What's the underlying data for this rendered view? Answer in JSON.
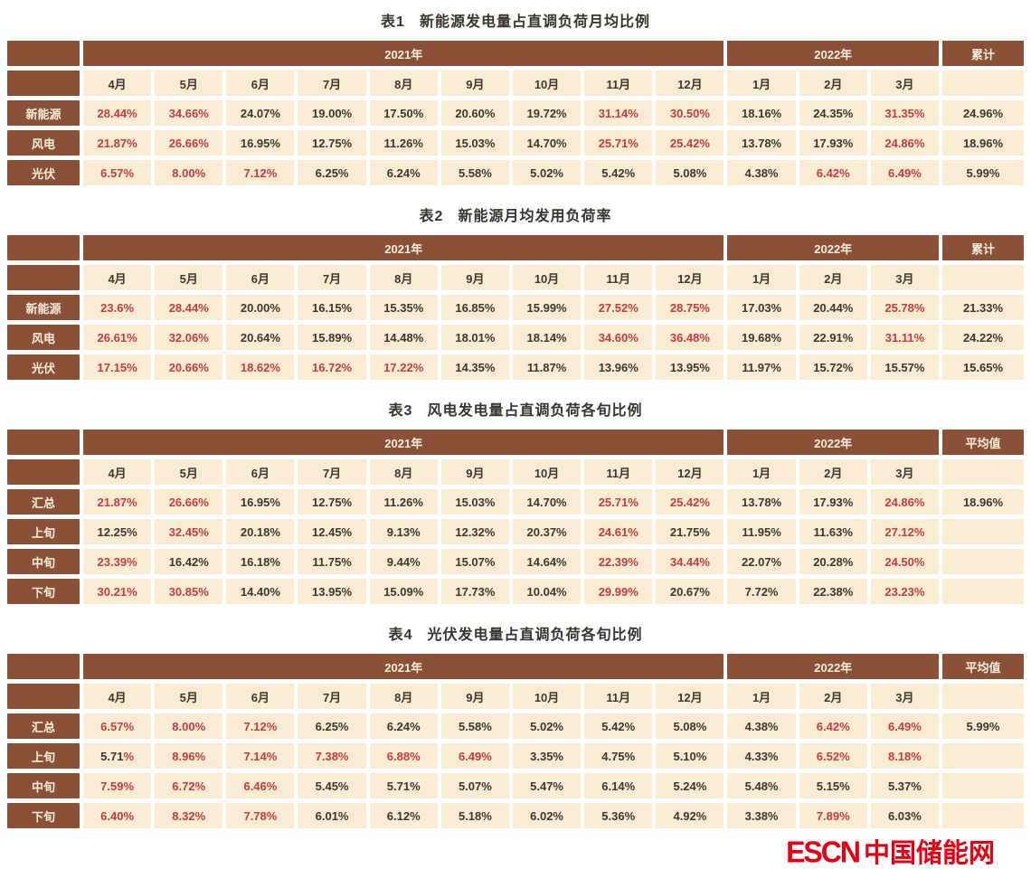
{
  "colors": {
    "header_brown": "#8a5136",
    "cell_cream": "#faecd2",
    "value_red": "#c93a42",
    "value_dark": "#3c3831",
    "header_text": "#f8eedd",
    "logo_red": "#e60012"
  },
  "footer": {
    "logo_escn": "ESCN",
    "logo_cn": "中国储能网"
  },
  "chart_data": {
    "type": "table",
    "months": [
      "4月",
      "5月",
      "6月",
      "7月",
      "8月",
      "9月",
      "10月",
      "11月",
      "12月",
      "1月",
      "2月",
      "3月"
    ],
    "year_groups": [
      {
        "label": "2021年",
        "span": 9
      },
      {
        "label": "2022年",
        "span": 3
      }
    ],
    "tables": [
      {
        "tag": "表1",
        "title": "新能源发电量占直调负荷月均比例",
        "last_col": "累计",
        "rows": [
          {
            "label": "新能源",
            "summary": "24.96%",
            "cells": [
              {
                "v": "28.44%",
                "c": "r"
              },
              {
                "v": "34.66%",
                "c": "r"
              },
              {
                "v": "24.07%",
                "c": "k"
              },
              {
                "v": "19.00%",
                "c": "k"
              },
              {
                "v": "17.50%",
                "c": "k"
              },
              {
                "v": "20.60%",
                "c": "k"
              },
              {
                "v": "19.72%",
                "c": "k"
              },
              {
                "v": "31.14%",
                "c": "r"
              },
              {
                "v": "30.50%",
                "c": "r"
              },
              {
                "v": "18.16%",
                "c": "k"
              },
              {
                "v": "24.35%",
                "c": "k"
              },
              {
                "v": "31.35%",
                "c": "r"
              }
            ]
          },
          {
            "label": "风电",
            "summary": "18.96%",
            "cells": [
              {
                "v": "21.87%",
                "c": "r"
              },
              {
                "v": "26.66%",
                "c": "r"
              },
              {
                "v": "16.95%",
                "c": "k"
              },
              {
                "v": "12.75%",
                "c": "k"
              },
              {
                "v": "11.26%",
                "c": "k"
              },
              {
                "v": "15.03%",
                "c": "k"
              },
              {
                "v": "14.70%",
                "c": "k"
              },
              {
                "v": "25.71%",
                "c": "r"
              },
              {
                "v": "25.42%",
                "c": "r"
              },
              {
                "v": "13.78%",
                "c": "k"
              },
              {
                "v": "17.93%",
                "c": "k"
              },
              {
                "v": "24.86%",
                "c": "r"
              }
            ]
          },
          {
            "label": "光伏",
            "summary": "5.99%",
            "cells": [
              {
                "v": "6.57%",
                "c": "r"
              },
              {
                "v": "8.00%",
                "c": "r"
              },
              {
                "v": "7.12%",
                "c": "r"
              },
              {
                "v": "6.25%",
                "c": "k"
              },
              {
                "v": "6.24%",
                "c": "k"
              },
              {
                "v": "5.58%",
                "c": "k"
              },
              {
                "v": "5.02%",
                "c": "k"
              },
              {
                "v": "5.42%",
                "c": "k"
              },
              {
                "v": "5.08%",
                "c": "k"
              },
              {
                "v": "4.38%",
                "c": "k"
              },
              {
                "v": "6.42%",
                "c": "r"
              },
              {
                "v": "6.49%",
                "c": "r"
              }
            ]
          }
        ]
      },
      {
        "tag": "表2",
        "title": "新能源月均发用负荷率",
        "last_col": "累计",
        "rows": [
          {
            "label": "新能源",
            "summary": "21.33%",
            "cells": [
              {
                "v": "23.6%",
                "c": "r"
              },
              {
                "v": "28.44%",
                "c": "r"
              },
              {
                "v": "20.00%",
                "c": "k"
              },
              {
                "v": "16.15%",
                "c": "k"
              },
              {
                "v": "15.35%",
                "c": "k"
              },
              {
                "v": "16.85%",
                "c": "k"
              },
              {
                "v": "15.99%",
                "c": "k"
              },
              {
                "v": "27.52%",
                "c": "r"
              },
              {
                "v": "28.75%",
                "c": "r"
              },
              {
                "v": "17.03%",
                "c": "k"
              },
              {
                "v": "20.44%",
                "c": "k"
              },
              {
                "v": "25.78%",
                "c": "r"
              }
            ]
          },
          {
            "label": "风电",
            "summary": "24.22%",
            "cells": [
              {
                "v": "26.61%",
                "c": "r"
              },
              {
                "v": "32.06%",
                "c": "r"
              },
              {
                "v": "20.64%",
                "c": "k"
              },
              {
                "v": "15.89%",
                "c": "k"
              },
              {
                "v": "14.48%",
                "c": "k"
              },
              {
                "v": "18.01%",
                "c": "k"
              },
              {
                "v": "18.14%",
                "c": "k"
              },
              {
                "v": "34.60%",
                "c": "r"
              },
              {
                "v": "36.48%",
                "c": "r"
              },
              {
                "v": "19.68%",
                "c": "k"
              },
              {
                "v": "22.91%",
                "c": "k"
              },
              {
                "v": "31.11%",
                "c": "r"
              }
            ]
          },
          {
            "label": "光伏",
            "summary": "15.65%",
            "cells": [
              {
                "v": "17.15%",
                "c": "r"
              },
              {
                "v": "20.66%",
                "c": "r"
              },
              {
                "v": "18.62%",
                "c": "r"
              },
              {
                "v": "16.72%",
                "c": "r"
              },
              {
                "v": "17.22%",
                "c": "r"
              },
              {
                "v": "14.35%",
                "c": "k"
              },
              {
                "v": "11.87%",
                "c": "k"
              },
              {
                "v": "13.96%",
                "c": "k"
              },
              {
                "v": "13.95%",
                "c": "k"
              },
              {
                "v": "11.97%",
                "c": "k"
              },
              {
                "v": "15.72%",
                "c": "k"
              },
              {
                "v": "15.57%",
                "c": "k"
              }
            ]
          }
        ]
      },
      {
        "tag": "表3",
        "title": "风电发电量占直调负荷各旬比例",
        "last_col": "平均值",
        "rows": [
          {
            "label": "汇总",
            "summary": "18.96%",
            "cells": [
              {
                "v": "21.87%",
                "c": "r"
              },
              {
                "v": "26.66%",
                "c": "r"
              },
              {
                "v": "16.95%",
                "c": "k"
              },
              {
                "v": "12.75%",
                "c": "k"
              },
              {
                "v": "11.26%",
                "c": "k"
              },
              {
                "v": "15.03%",
                "c": "k"
              },
              {
                "v": "14.70%",
                "c": "k"
              },
              {
                "v": "25.71%",
                "c": "r"
              },
              {
                "v": "25.42%",
                "c": "r"
              },
              {
                "v": "13.78%",
                "c": "k"
              },
              {
                "v": "17.93%",
                "c": "k"
              },
              {
                "v": "24.86%",
                "c": "r"
              }
            ]
          },
          {
            "label": "上旬",
            "summary": "",
            "cells": [
              {
                "v": "12.25%",
                "c": "k"
              },
              {
                "v": "32.45%",
                "c": "r"
              },
              {
                "v": "20.18%",
                "c": "k"
              },
              {
                "v": "12.45%",
                "c": "k"
              },
              {
                "v": "9.13%",
                "c": "k"
              },
              {
                "v": "12.32%",
                "c": "k"
              },
              {
                "v": "20.37%",
                "c": "k"
              },
              {
                "v": "24.61%",
                "c": "r"
              },
              {
                "v": "21.75%",
                "c": "k"
              },
              {
                "v": "11.95%",
                "c": "k"
              },
              {
                "v": "11.63%",
                "c": "k"
              },
              {
                "v": "27.12%",
                "c": "r"
              }
            ]
          },
          {
            "label": "中旬",
            "summary": "",
            "cells": [
              {
                "v": "23.39%",
                "c": "r"
              },
              {
                "v": "16.42%",
                "c": "k"
              },
              {
                "v": "16.18%",
                "c": "k"
              },
              {
                "v": "11.75%",
                "c": "k"
              },
              {
                "v": "9.44%",
                "c": "k"
              },
              {
                "v": "15.07%",
                "c": "k"
              },
              {
                "v": "14.64%",
                "c": "k"
              },
              {
                "v": "22.39%",
                "c": "r"
              },
              {
                "v": "34.44%",
                "c": "r"
              },
              {
                "v": "22.07%",
                "c": "k"
              },
              {
                "v": "20.28%",
                "c": "k"
              },
              {
                "v": "24.50%",
                "c": "r"
              }
            ]
          },
          {
            "label": "下旬",
            "summary": "",
            "cells": [
              {
                "v": "30.21%",
                "c": "r"
              },
              {
                "v": "30.85%",
                "c": "r"
              },
              {
                "v": "14.40%",
                "c": "k"
              },
              {
                "v": "13.95%",
                "c": "k"
              },
              {
                "v": "15.09%",
                "c": "k"
              },
              {
                "v": "17.73%",
                "c": "k"
              },
              {
                "v": "10.04%",
                "c": "k"
              },
              {
                "v": "29.99%",
                "c": "r"
              },
              {
                "v": "20.67%",
                "c": "k"
              },
              {
                "v": "7.72%",
                "c": "k"
              },
              {
                "v": "22.38%",
                "c": "k"
              },
              {
                "v": "23.23%",
                "c": "r"
              }
            ]
          }
        ]
      },
      {
        "tag": "表4",
        "title": "光伏发电量占直调负荷各旬比例",
        "last_col": "平均值",
        "rows": [
          {
            "label": "汇总",
            "summary": "5.99%",
            "cells": [
              {
                "v": "6.57%",
                "c": "r"
              },
              {
                "v": "8.00%",
                "c": "r"
              },
              {
                "v": "7.12%",
                "c": "r"
              },
              {
                "v": "6.25%",
                "c": "k"
              },
              {
                "v": "6.24%",
                "c": "k"
              },
              {
                "v": "5.58%",
                "c": "k"
              },
              {
                "v": "5.02%",
                "c": "k"
              },
              {
                "v": "5.42%",
                "c": "k"
              },
              {
                "v": "5.08%",
                "c": "k"
              },
              {
                "v": "4.38%",
                "c": "k"
              },
              {
                "v": "6.42%",
                "c": "r"
              },
              {
                "v": "6.49%",
                "c": "r"
              }
            ]
          },
          {
            "label": "上旬",
            "summary": "",
            "cells": [
              {
                "v": "5.71%",
                "c": "m"
              },
              {
                "v": "8.96%",
                "c": "r"
              },
              {
                "v": "7.14%",
                "c": "r"
              },
              {
                "v": "7.38%",
                "c": "r"
              },
              {
                "v": "6.88%",
                "c": "r"
              },
              {
                "v": "6.49%",
                "c": "r"
              },
              {
                "v": "3.35%",
                "c": "k"
              },
              {
                "v": "4.75%",
                "c": "k"
              },
              {
                "v": "5.10%",
                "c": "k"
              },
              {
                "v": "4.33%",
                "c": "k"
              },
              {
                "v": "6.52%",
                "c": "r"
              },
              {
                "v": "8.18%",
                "c": "r"
              }
            ]
          },
          {
            "label": "中旬",
            "summary": "",
            "cells": [
              {
                "v": "7.59%",
                "c": "r"
              },
              {
                "v": "6.72%",
                "c": "r"
              },
              {
                "v": "6.46%",
                "c": "r"
              },
              {
                "v": "5.45%",
                "c": "k"
              },
              {
                "v": "5.71%",
                "c": "k"
              },
              {
                "v": "5.07%",
                "c": "k"
              },
              {
                "v": "5.47%",
                "c": "k"
              },
              {
                "v": "6.14%",
                "c": "k"
              },
              {
                "v": "5.24%",
                "c": "k"
              },
              {
                "v": "5.48%",
                "c": "k"
              },
              {
                "v": "5.15%",
                "c": "k"
              },
              {
                "v": "5.37%",
                "c": "k"
              }
            ]
          },
          {
            "label": "下旬",
            "summary": "",
            "cells": [
              {
                "v": "6.40%",
                "c": "r"
              },
              {
                "v": "8.32%",
                "c": "r"
              },
              {
                "v": "7.78%",
                "c": "r"
              },
              {
                "v": "6.01%",
                "c": "k"
              },
              {
                "v": "6.12%",
                "c": "k"
              },
              {
                "v": "5.18%",
                "c": "k"
              },
              {
                "v": "6.02%",
                "c": "k"
              },
              {
                "v": "5.36%",
                "c": "k"
              },
              {
                "v": "4.92%",
                "c": "k"
              },
              {
                "v": "3.38%",
                "c": "k"
              },
              {
                "v": "7.89%",
                "c": "r"
              },
              {
                "v": "6.03%",
                "c": "k"
              }
            ]
          }
        ]
      }
    ]
  }
}
